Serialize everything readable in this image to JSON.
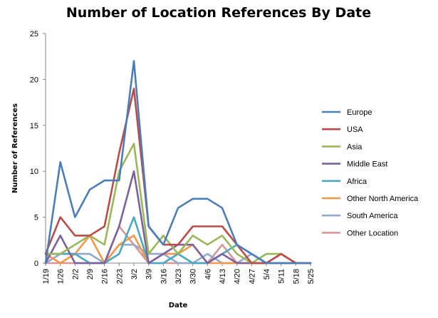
{
  "chart_data": {
    "type": "line",
    "title": "Number of Location References By Date",
    "xlabel": "Date",
    "ylabel": "Number of References",
    "ylim": [
      0,
      25
    ],
    "yticks": [
      0,
      5,
      10,
      15,
      20,
      25
    ],
    "grid": false,
    "legend_position": "right",
    "categories": [
      "1/19",
      "1/26",
      "2/2",
      "2/9",
      "2/16",
      "2/23",
      "3/2",
      "3/9",
      "3/16",
      "3/23",
      "3/30",
      "4/6",
      "4/13",
      "4/20",
      "4/27",
      "5/4",
      "5/11",
      "5/18",
      "5/25"
    ],
    "series": [
      {
        "name": "Europe",
        "color": "#4A7EBB",
        "values": [
          0,
          11,
          5,
          8,
          9,
          9,
          22,
          4,
          2,
          6,
          7,
          7,
          6,
          2,
          1,
          0,
          0,
          0,
          0
        ]
      },
      {
        "name": "USA",
        "color": "#BE4B48",
        "values": [
          1,
          5,
          3,
          3,
          4,
          12,
          19,
          4,
          2,
          2,
          4,
          4,
          4,
          2,
          0,
          0,
          1,
          0,
          0
        ]
      },
      {
        "name": "Asia",
        "color": "#98B954",
        "values": [
          1,
          1,
          2,
          3,
          2,
          10,
          13,
          1,
          3,
          1,
          3,
          2,
          3,
          1,
          0,
          1,
          1,
          0,
          0
        ]
      },
      {
        "name": "Middle East",
        "color": "#7D60A0",
        "values": [
          0,
          3,
          0,
          0,
          0,
          4,
          10,
          0,
          1,
          2,
          2,
          0,
          1,
          0,
          0,
          0,
          1,
          0,
          0
        ]
      },
      {
        "name": "Africa",
        "color": "#46AAC5",
        "values": [
          1,
          1,
          1,
          0,
          0,
          1,
          5,
          0,
          0,
          1,
          0,
          0,
          1,
          2,
          1,
          0,
          0,
          0,
          0
        ]
      },
      {
        "name": "Other North America",
        "color": "#F79646",
        "values": [
          1,
          0,
          1,
          3,
          0,
          2,
          3,
          0,
          1,
          1,
          2,
          0,
          0,
          0,
          0,
          0,
          0,
          0,
          0
        ]
      },
      {
        "name": "South America",
        "color": "#92A9CF",
        "values": [
          0,
          1,
          1,
          1,
          0,
          2,
          2,
          1,
          1,
          0,
          0,
          1,
          0,
          0,
          1,
          0,
          0,
          0,
          0
        ]
      },
      {
        "name": "Other Location",
        "color": "#D99694",
        "values": [
          0,
          0,
          0,
          0,
          0,
          4,
          2,
          0,
          0,
          0,
          0,
          0,
          2,
          0,
          0,
          0,
          0,
          0,
          0
        ]
      }
    ]
  }
}
